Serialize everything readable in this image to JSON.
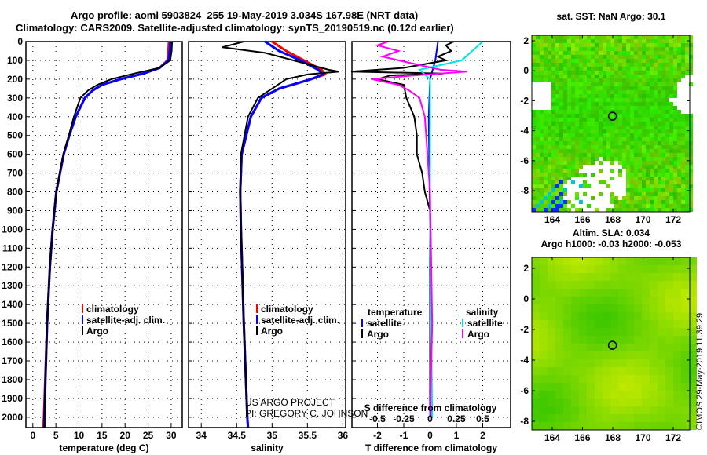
{
  "title_line1": "Argo profile: aoml 5903824_255 19-May-2019 3.034S 167.98E (NRT data)",
  "title_line2": "Climatology: CARS2009. Satellite-adjusted climatology: synTS_20190519.nc (0.12d earlier)",
  "credit1": "US ARGO PROJECT",
  "credit2": "PI: GREGORY C. JOHNSON",
  "timestamp": "©IMOS 29-May-2019 11:39:29",
  "colors": {
    "climatology": "#ff0000",
    "satellite": "#0000ff",
    "argo": "#000000",
    "sal_sat": "#00e5e5",
    "sal_argo": "#ff00ff"
  },
  "chart_data": [
    {
      "type": "line",
      "xlabel": "temperature (deg C)",
      "xlim": [
        -1.5,
        32.4
      ],
      "ylim": [
        2055,
        0
      ],
      "xticks": [
        0,
        5,
        10,
        15,
        20,
        25,
        30
      ],
      "yticks": [
        0,
        100,
        200,
        300,
        400,
        500,
        600,
        700,
        800,
        900,
        1000,
        1100,
        1200,
        1300,
        1400,
        1500,
        1600,
        1700,
        1800,
        1900,
        2000
      ],
      "legend": [
        "climatology",
        "satellite-adj. clim.",
        "Argo"
      ],
      "series": [
        {
          "name": "climatology",
          "color": "#ff0000",
          "depth": [
            0,
            50,
            100,
            140,
            170,
            200,
            230,
            260,
            300,
            400,
            500,
            600,
            800,
            1000,
            1200,
            1500,
            2000,
            2055
          ],
          "values": [
            29.5,
            29.4,
            29.2,
            27.5,
            24,
            19,
            15,
            13,
            11.3,
            9.3,
            7.9,
            6.7,
            5.1,
            4.3,
            3.7,
            3.1,
            2.4,
            2.3
          ]
        },
        {
          "name": "satellite-adj. clim.",
          "color": "#0000ff",
          "depth": [
            0,
            50,
            100,
            140,
            170,
            200,
            230,
            260,
            300,
            400,
            500,
            600,
            800,
            1000,
            1200,
            1500,
            2000,
            2055
          ],
          "values": [
            29.8,
            29.7,
            29.4,
            27.5,
            24,
            19,
            15,
            13,
            11.3,
            9.3,
            7.9,
            6.7,
            5.1,
            4.3,
            3.7,
            3.1,
            2.5,
            2.5
          ]
        },
        {
          "name": "Argo",
          "color": "#000000",
          "depth": [
            0,
            50,
            100,
            140,
            170,
            200,
            230,
            260,
            300,
            400,
            500,
            600,
            800,
            1000,
            1200,
            1500,
            2000,
            2055
          ],
          "values": [
            30.2,
            30.1,
            29.8,
            27.5,
            22,
            17,
            14,
            12,
            10.3,
            8.9,
            7.8,
            6.6,
            5.1,
            4.3,
            3.7,
            3.1,
            2.5,
            2.5
          ]
        }
      ]
    },
    {
      "type": "line",
      "xlabel": "salinity",
      "xlim": [
        33.82,
        36.04
      ],
      "ylim": [
        2055,
        0
      ],
      "xticks": [
        34,
        34.5,
        35,
        35.5,
        36
      ],
      "legend": [
        "climatology",
        "satellite-adj. clim.",
        "Argo"
      ],
      "series": [
        {
          "name": "climatology",
          "color": "#ff0000",
          "depth": [
            0,
            50,
            100,
            150,
            175,
            200,
            250,
            300,
            400,
            600,
            800,
            1000,
            1500,
            2000,
            2055
          ],
          "values": [
            35.0,
            35.2,
            35.45,
            35.7,
            35.75,
            35.55,
            35.1,
            34.85,
            34.7,
            34.57,
            34.55,
            34.56,
            34.6,
            34.65,
            34.66
          ]
        },
        {
          "name": "satellite-adj. clim.",
          "color": "#0000ff",
          "depth": [
            0,
            50,
            100,
            150,
            175,
            200,
            250,
            300,
            400,
            600,
            800,
            1000,
            1500,
            2000,
            2055
          ],
          "values": [
            34.9,
            35.1,
            35.4,
            35.65,
            35.72,
            35.55,
            35.1,
            34.85,
            34.7,
            34.57,
            34.55,
            34.56,
            34.6,
            34.65,
            34.66
          ]
        },
        {
          "name": "Argo",
          "color": "#000000",
          "depth": [
            0,
            30,
            60,
            100,
            150,
            160,
            175,
            200,
            250,
            300,
            400,
            600,
            800,
            1000,
            1500,
            2000
          ],
          "values": [
            34.6,
            34.3,
            34.9,
            35.3,
            35.8,
            35.95,
            35.5,
            35.2,
            35.0,
            34.8,
            34.66,
            34.56,
            34.55,
            34.56,
            34.6,
            34.65
          ]
        }
      ]
    },
    {
      "type": "line",
      "xlabel": "T difference from climatology",
      "xlabel2": "S difference from climatology",
      "xlim": [
        -2.97,
        3.06
      ],
      "ylim": [
        2055,
        0
      ],
      "xticks": [
        -2,
        -1,
        0,
        1,
        2
      ],
      "xticks2": [
        -0.5,
        -0.25,
        0,
        0.25,
        0.5
      ],
      "legend_titles": [
        "temperature",
        "salinity"
      ],
      "legend": [
        "satellite",
        "Argo",
        "satellite",
        "Argo"
      ],
      "series": [
        {
          "name": "T satellite",
          "color": "#0000ff",
          "depth": [
            0,
            100,
            150,
            200,
            400,
            1000,
            2000
          ],
          "values": [
            0.3,
            0.2,
            0.1,
            0,
            -0.05,
            0,
            0.05
          ]
        },
        {
          "name": "T Argo",
          "color": "#000000",
          "depth": [
            0,
            20,
            50,
            80,
            100,
            140,
            160,
            170,
            180,
            200,
            230,
            300,
            400,
            500,
            600,
            700,
            800,
            900,
            1000,
            1500,
            2000
          ],
          "values": [
            0.9,
            0.6,
            0.8,
            0.3,
            0.6,
            -1,
            -3,
            0.5,
            -1.5,
            -2,
            -1,
            -0.9,
            -0.6,
            -0.5,
            -0.5,
            -0.3,
            -0.2,
            0,
            0,
            0,
            0
          ]
        },
        {
          "name": "S satellite",
          "color": "#00e5e5",
          "depth": [
            0,
            100,
            150,
            200,
            400,
            1000,
            2000
          ],
          "values": [
            0.5,
            0.3,
            -0.1,
            0,
            0,
            0,
            0.02
          ]
        },
        {
          "name": "S Argo",
          "color": "#ff00ff",
          "depth": [
            0,
            20,
            50,
            80,
            100,
            150,
            160,
            180,
            200,
            230,
            260,
            300,
            400,
            800,
            1500,
            2000
          ],
          "values": [
            -0.4,
            -0.5,
            -0.3,
            -0.45,
            -0.3,
            0.1,
            0.35,
            -0.15,
            -0.55,
            -0.3,
            -0.2,
            -0.1,
            -0.05,
            0,
            0.02,
            0
          ]
        }
      ]
    },
    {
      "type": "heatmap",
      "title": "sat. SST: NaN Argo: 30.1",
      "xticks": [
        164,
        166,
        168,
        170,
        172
      ],
      "yticks": [
        2,
        0,
        -2,
        -4,
        -6,
        -8
      ],
      "xlim": [
        163,
        173.4
      ],
      "ylim": [
        -8.9,
        2.4
      ],
      "marker": [
        167.98,
        -3.034
      ]
    },
    {
      "type": "heatmap",
      "title": "Altim. SLA: 0.034",
      "subtitle": "Argo h1000: -0.03 h2000: -0.053",
      "xticks": [
        164,
        166,
        168,
        170,
        172
      ],
      "yticks": [
        2,
        0,
        -2,
        -4,
        -6,
        -8
      ],
      "xlim": [
        163,
        173.4
      ],
      "ylim": [
        -8.9,
        2.4
      ],
      "marker": [
        167.98,
        -3.034
      ]
    }
  ]
}
